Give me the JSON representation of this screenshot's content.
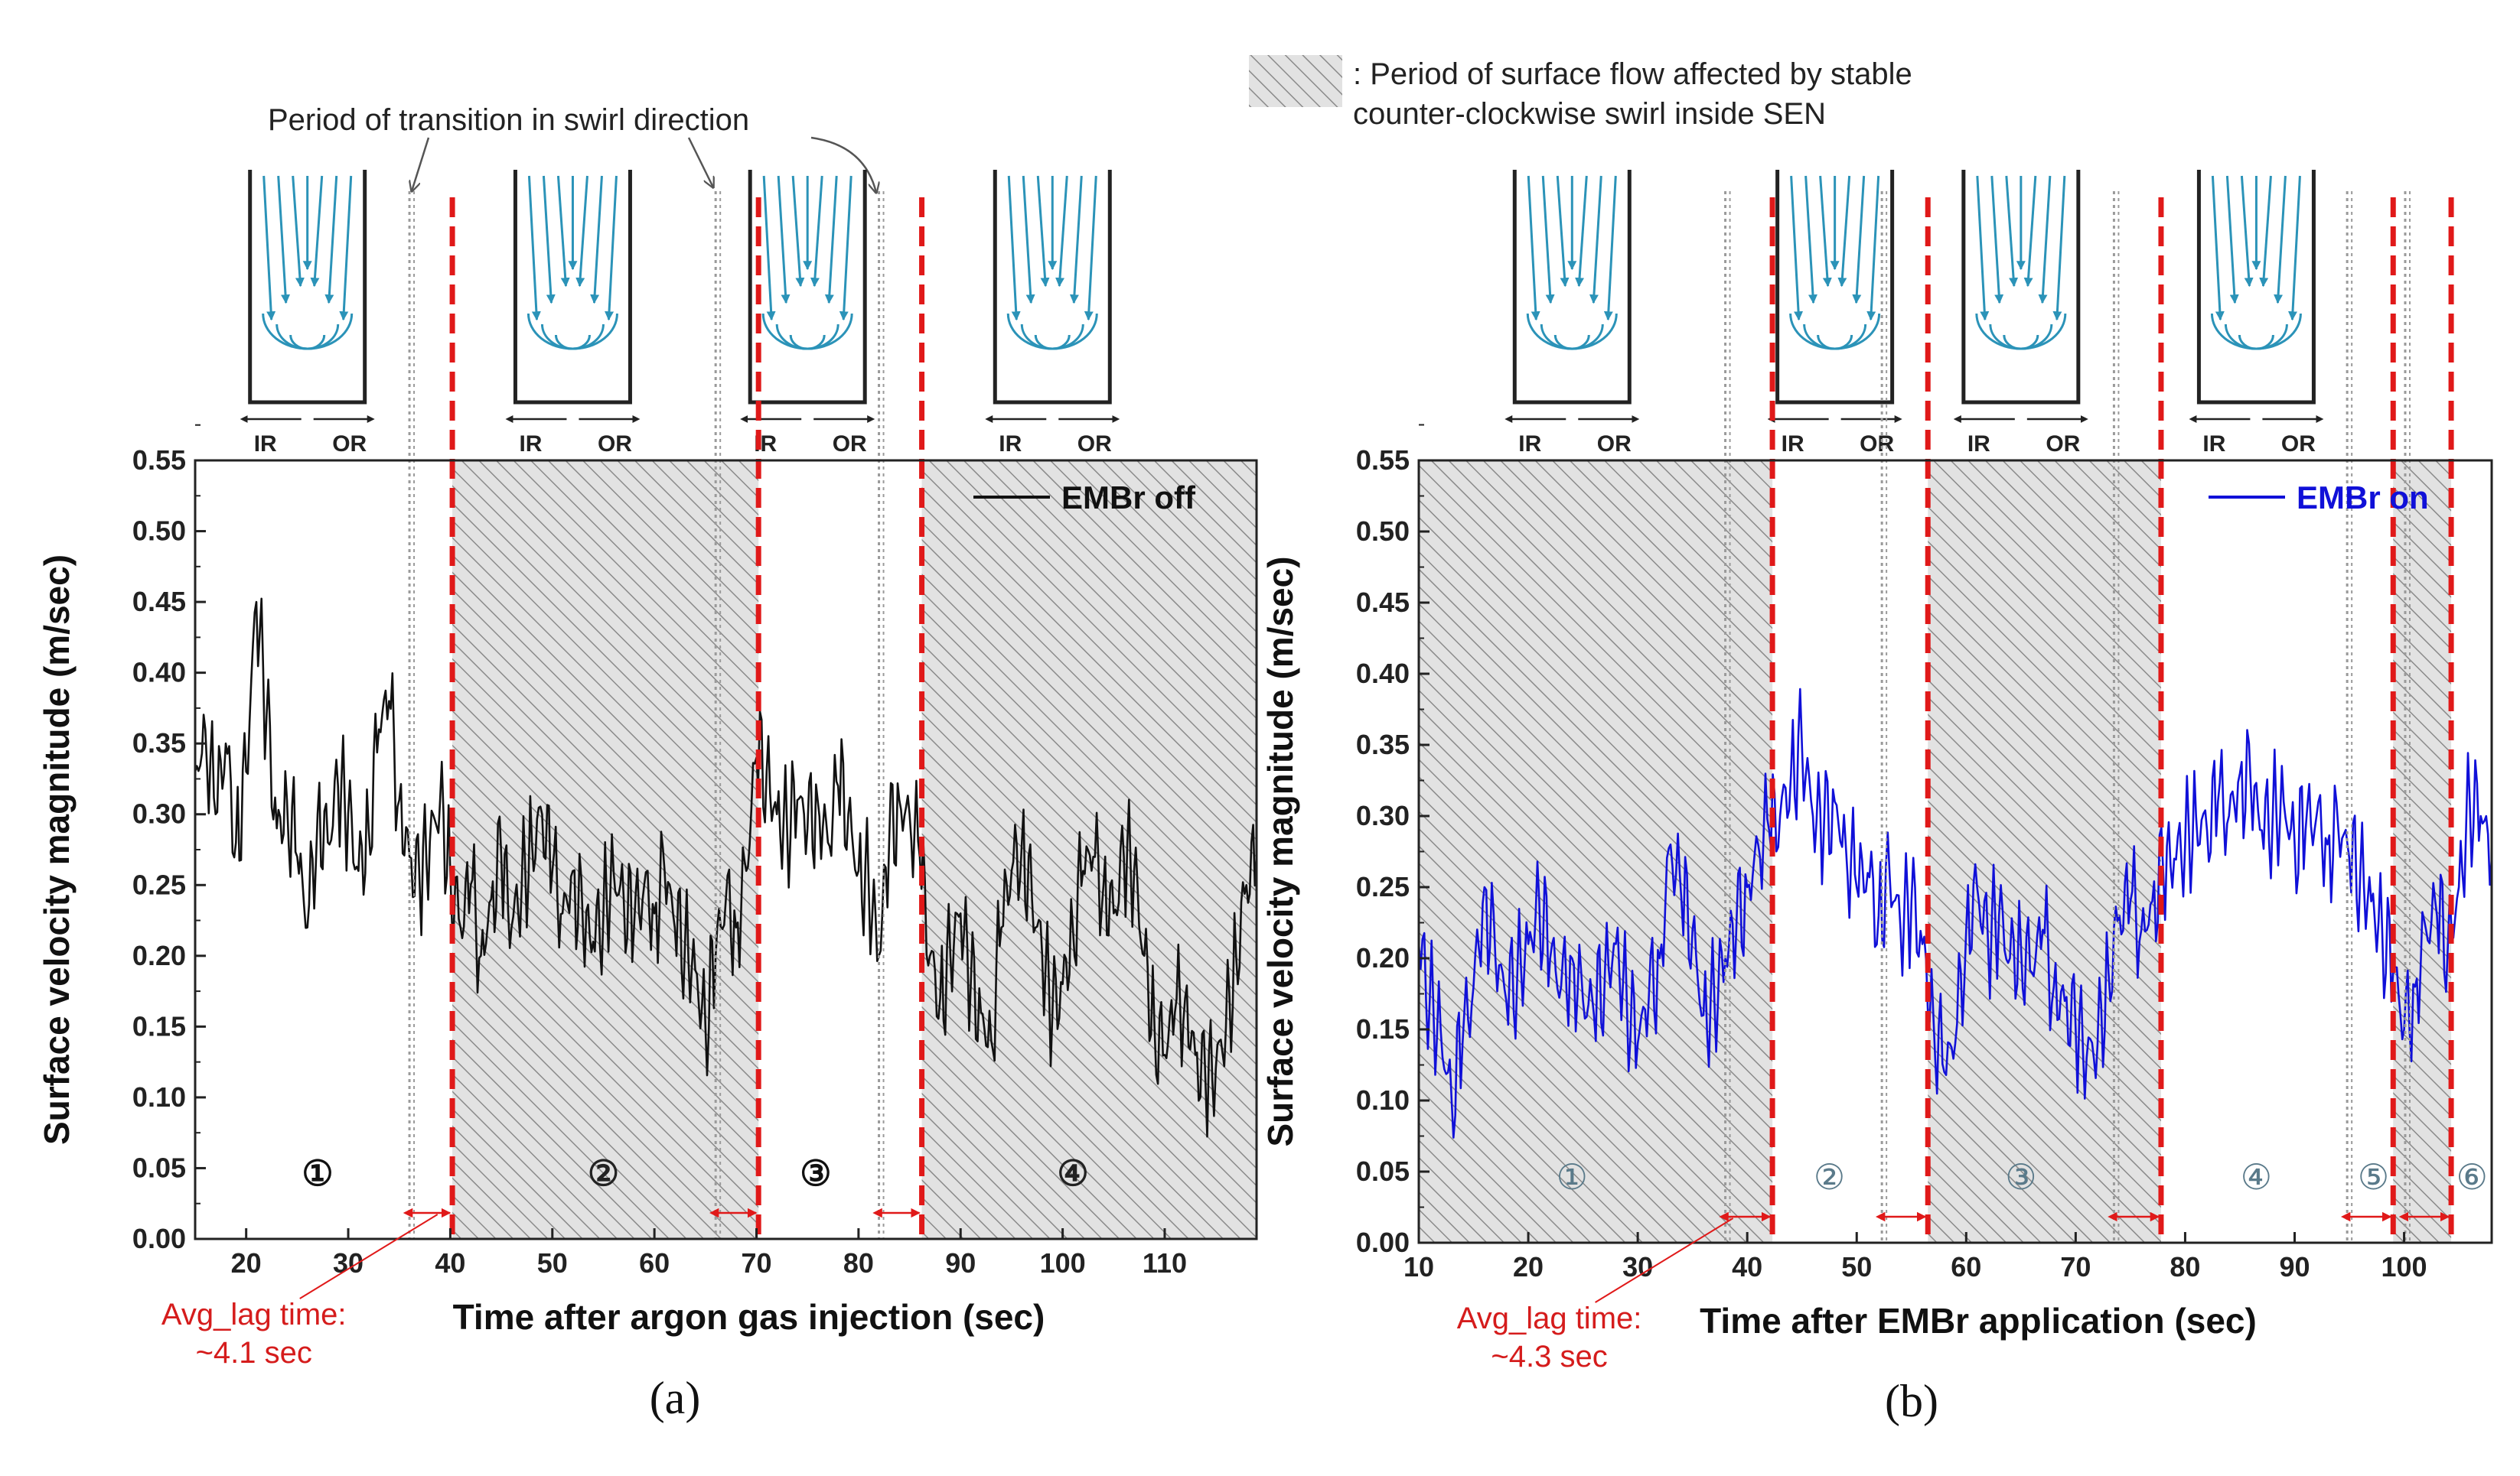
{
  "colors": {
    "red_dash": "#e01919",
    "grey_dot": "#9a9a9a",
    "hatch_bg": "#e2e2e2",
    "hatch_line": "#8a8a8a",
    "flow_cyan": "#2b93b8",
    "series_a": "#111111",
    "series_b": "#1010d8"
  },
  "annotations": {
    "transition_label": "Period of transition in swirl direction",
    "hatch_legend_line1": ": Period of surface flow affected by stable",
    "hatch_legend_line2": "counter-clockwise swirl inside SEN"
  },
  "chart_data": [
    {
      "type": "line",
      "panel_label": "(a)",
      "title": "",
      "xlabel": "Time after argon gas injection (sec)",
      "ylabel": "Surface velocity magnitude (m/sec)",
      "xlim": [
        15,
        119
      ],
      "ylim": [
        0.0,
        0.55
      ],
      "xticks": [
        20,
        30,
        40,
        50,
        60,
        70,
        80,
        90,
        100,
        110
      ],
      "yticks": [
        "0.00",
        "0.05",
        "0.10",
        "0.15",
        "0.20",
        "0.25",
        "0.30",
        "0.35",
        "0.40",
        "0.45",
        "0.50",
        "0.55"
      ],
      "legend": {
        "label": "EMBr off",
        "position": "top-right"
      },
      "lag_note": {
        "line1": "Avg_lag time:",
        "line2": "~4.1 sec",
        "x": 38
      },
      "hatched_regions": [
        [
          40.2,
          70.2
        ],
        [
          86.2,
          119
        ]
      ],
      "red_dashed_x": [
        40.2,
        70.2,
        86.2
      ],
      "grey_dotted_x": [
        36.0,
        66.0,
        82.0
      ],
      "lag_arrows": [
        [
          36.0,
          40.2
        ],
        [
          66.0,
          70.2
        ],
        [
          82.0,
          86.2
        ]
      ],
      "segment_labels": [
        {
          "text": "1",
          "x": 27.0,
          "hatched": false
        },
        {
          "text": "2",
          "x": 55.0,
          "hatched": true
        },
        {
          "text": "3",
          "x": 75.8,
          "hatched": false
        },
        {
          "text": "4",
          "x": 101.0,
          "hatched": true
        }
      ],
      "schematics": [
        {
          "x": 26.0,
          "ir": "IR",
          "or": "OR"
        },
        {
          "x": 52.0,
          "ir": "IR",
          "or": "OR"
        },
        {
          "x": 75.0,
          "ir": "IR",
          "or": "OR"
        },
        {
          "x": 99.0,
          "ir": "IR",
          "or": "OR"
        }
      ],
      "series": [
        {
          "name": "EMBr off",
          "color": "#111111",
          "x": [
            15,
            16,
            17,
            18,
            19,
            20,
            21,
            22,
            23,
            24,
            25,
            26,
            27,
            28,
            29,
            30,
            31,
            32,
            33,
            34,
            35,
            36,
            37,
            38,
            39,
            40,
            41,
            42,
            43,
            44,
            45,
            46,
            47,
            48,
            49,
            50,
            51,
            52,
            53,
            54,
            55,
            56,
            57,
            58,
            59,
            60,
            61,
            62,
            63,
            64,
            65,
            66,
            67,
            68,
            69,
            70,
            71,
            72,
            73,
            74,
            75,
            76,
            77,
            78,
            79,
            80,
            81,
            82,
            83,
            84,
            85,
            86,
            87,
            88,
            89,
            90,
            91,
            92,
            93,
            94,
            95,
            96,
            97,
            98,
            99,
            100,
            101,
            102,
            103,
            104,
            105,
            106,
            107,
            108,
            109,
            110,
            111,
            112,
            113,
            114,
            115,
            116,
            117,
            118,
            119
          ],
          "y": [
            0.33,
            0.36,
            0.3,
            0.35,
            0.28,
            0.33,
            0.45,
            0.37,
            0.29,
            0.31,
            0.27,
            0.22,
            0.3,
            0.28,
            0.32,
            0.3,
            0.26,
            0.29,
            0.36,
            0.38,
            0.31,
            0.27,
            0.25,
            0.28,
            0.31,
            0.26,
            0.22,
            0.25,
            0.2,
            0.24,
            0.27,
            0.22,
            0.25,
            0.28,
            0.3,
            0.26,
            0.23,
            0.26,
            0.22,
            0.21,
            0.23,
            0.26,
            0.24,
            0.22,
            0.25,
            0.23,
            0.26,
            0.22,
            0.21,
            0.19,
            0.15,
            0.2,
            0.24,
            0.22,
            0.26,
            0.34,
            0.33,
            0.3,
            0.29,
            0.31,
            0.29,
            0.31,
            0.28,
            0.32,
            0.3,
            0.26,
            0.25,
            0.2,
            0.28,
            0.31,
            0.3,
            0.27,
            0.2,
            0.17,
            0.2,
            0.23,
            0.18,
            0.16,
            0.14,
            0.22,
            0.26,
            0.28,
            0.24,
            0.2,
            0.16,
            0.18,
            0.22,
            0.26,
            0.27,
            0.25,
            0.23,
            0.27,
            0.26,
            0.2,
            0.15,
            0.13,
            0.16,
            0.17,
            0.13,
            0.11,
            0.12,
            0.15,
            0.2,
            0.25,
            0.27
          ]
        }
      ]
    },
    {
      "type": "line",
      "panel_label": "(b)",
      "title": "",
      "xlabel": "Time after EMBr application (sec)",
      "ylabel": "Surface velocity magnitude (m/sec)",
      "xlim": [
        10,
        108
      ],
      "ylim": [
        0.0,
        0.55
      ],
      "xticks": [
        10,
        20,
        30,
        40,
        50,
        60,
        70,
        80,
        90,
        100
      ],
      "yticks": [
        "0.00",
        "0.05",
        "0.10",
        "0.15",
        "0.20",
        "0.25",
        "0.30",
        "0.35",
        "0.40",
        "0.45",
        "0.50",
        "0.55"
      ],
      "legend": {
        "label": "EMBr on",
        "position": "top-right"
      },
      "lag_note": {
        "line1": "Avg_lag time:",
        "line2": "~4.3 sec",
        "x": 38
      },
      "hatched_regions": [
        [
          10,
          42.3
        ],
        [
          56.5,
          77.8
        ],
        [
          99.0,
          104.3
        ]
      ],
      "red_dashed_x": [
        42.3,
        56.5,
        77.8,
        99.0,
        104.3
      ],
      "grey_dotted_x": [
        38.0,
        52.3,
        73.5,
        94.8,
        100.1
      ],
      "lag_arrows": [
        [
          38.0,
          42.3
        ],
        [
          52.3,
          56.5
        ],
        [
          73.5,
          77.8
        ],
        [
          94.8,
          99.0
        ],
        [
          100.1,
          104.3
        ]
      ],
      "segment_labels": [
        {
          "text": "1",
          "x": 24.0,
          "hatched": true
        },
        {
          "text": "2",
          "x": 47.5,
          "hatched": false
        },
        {
          "text": "3",
          "x": 65.0,
          "hatched": true
        },
        {
          "text": "4",
          "x": 86.5,
          "hatched": false
        },
        {
          "text": "5",
          "x": 97.2,
          "hatched": false
        },
        {
          "text": "6",
          "x": 106.2,
          "hatched": false
        }
      ],
      "schematics": [
        {
          "x": 24.0,
          "ir": "IR",
          "or": "OR"
        },
        {
          "x": 48.0,
          "ir": "IR",
          "or": "OR"
        },
        {
          "x": 65.0,
          "ir": "IR",
          "or": "OR"
        },
        {
          "x": 86.5,
          "ir": "IR",
          "or": "OR"
        }
      ],
      "series": [
        {
          "name": "EMBr on",
          "color": "#1010d8",
          "x": [
            10,
            11,
            12,
            13,
            14,
            15,
            16,
            17,
            18,
            19,
            20,
            21,
            22,
            23,
            24,
            25,
            26,
            27,
            28,
            29,
            30,
            31,
            32,
            33,
            34,
            35,
            36,
            37,
            38,
            39,
            40,
            41,
            42,
            43,
            44,
            45,
            46,
            47,
            48,
            49,
            50,
            51,
            52,
            53,
            54,
            55,
            56,
            57,
            58,
            59,
            60,
            61,
            62,
            63,
            64,
            65,
            66,
            67,
            68,
            69,
            70,
            71,
            72,
            73,
            74,
            75,
            76,
            77,
            78,
            79,
            80,
            81,
            82,
            83,
            84,
            85,
            86,
            87,
            88,
            89,
            90,
            91,
            92,
            93,
            94,
            95,
            96,
            97,
            98,
            99,
            100,
            101,
            102,
            103,
            104,
            105,
            106,
            107,
            108
          ],
          "y": [
            0.21,
            0.17,
            0.15,
            0.1,
            0.14,
            0.18,
            0.25,
            0.2,
            0.17,
            0.19,
            0.21,
            0.24,
            0.2,
            0.18,
            0.2,
            0.17,
            0.16,
            0.19,
            0.21,
            0.17,
            0.14,
            0.17,
            0.2,
            0.28,
            0.24,
            0.22,
            0.16,
            0.17,
            0.2,
            0.22,
            0.25,
            0.28,
            0.29,
            0.3,
            0.33,
            0.35,
            0.3,
            0.29,
            0.31,
            0.28,
            0.25,
            0.26,
            0.23,
            0.26,
            0.22,
            0.24,
            0.21,
            0.16,
            0.12,
            0.14,
            0.22,
            0.25,
            0.21,
            0.23,
            0.2,
            0.21,
            0.19,
            0.22,
            0.18,
            0.17,
            0.15,
            0.13,
            0.14,
            0.19,
            0.23,
            0.24,
            0.22,
            0.24,
            0.26,
            0.27,
            0.28,
            0.3,
            0.29,
            0.31,
            0.3,
            0.33,
            0.32,
            0.29,
            0.3,
            0.31,
            0.28,
            0.29,
            0.3,
            0.28,
            0.29,
            0.27,
            0.26,
            0.24,
            0.22,
            0.19,
            0.15,
            0.18,
            0.22,
            0.23,
            0.21,
            0.25,
            0.31,
            0.3,
            0.27
          ]
        }
      ]
    }
  ]
}
